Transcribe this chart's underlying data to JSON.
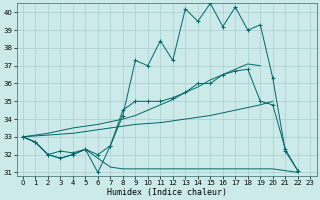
{
  "xlabel": "Humidex (Indice chaleur)",
  "background_color": "#cceaea",
  "grid_color": "#aacece",
  "line_color": "#006666",
  "xlim": [
    -0.5,
    23.5
  ],
  "ylim": [
    30.8,
    40.5
  ],
  "yticks": [
    31,
    32,
    33,
    34,
    35,
    36,
    37,
    38,
    39,
    40
  ],
  "xticks": [
    0,
    1,
    2,
    3,
    4,
    5,
    6,
    7,
    8,
    9,
    10,
    11,
    12,
    13,
    14,
    15,
    16,
    17,
    18,
    19,
    20,
    21,
    22,
    23
  ],
  "series": {
    "spiky": [
      33.0,
      32.7,
      32.0,
      32.2,
      32.1,
      32.3,
      31.0,
      32.5,
      34.2,
      37.3,
      37.0,
      38.4,
      37.3,
      40.2,
      39.5,
      40.5,
      39.2,
      40.3,
      39.0,
      39.3,
      36.3,
      32.2,
      31.1,
      null
    ],
    "smooth_upper": [
      33.0,
      32.7,
      32.0,
      31.8,
      32.0,
      32.3,
      32.0,
      32.5,
      34.5,
      35.0,
      35.0,
      35.0,
      35.2,
      35.5,
      36.0,
      36.0,
      36.5,
      36.7,
      36.8,
      35.0,
      34.8,
      32.3,
      31.1,
      null
    ],
    "flat_lower": [
      33.0,
      32.7,
      32.0,
      31.8,
      32.0,
      32.3,
      31.8,
      31.3,
      31.2,
      31.2,
      31.2,
      31.2,
      31.2,
      31.2,
      31.2,
      31.2,
      31.2,
      31.2,
      31.2,
      31.2,
      31.2,
      31.1,
      31.0,
      null
    ],
    "trend_steep": [
      33.0,
      33.1,
      33.2,
      33.35,
      33.5,
      33.6,
      33.7,
      33.85,
      34.0,
      34.2,
      34.5,
      34.8,
      35.1,
      35.5,
      35.8,
      36.2,
      36.5,
      36.8,
      37.1,
      37.0,
      null,
      null,
      null,
      null
    ],
    "trend_shallow": [
      33.0,
      33.05,
      33.1,
      33.15,
      33.2,
      33.3,
      33.4,
      33.5,
      33.6,
      33.7,
      33.75,
      33.8,
      33.9,
      34.0,
      34.1,
      34.2,
      34.35,
      34.5,
      34.65,
      34.8,
      35.0,
      null,
      null,
      null
    ]
  }
}
